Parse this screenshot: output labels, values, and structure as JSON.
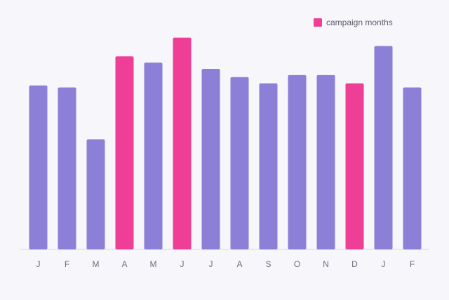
{
  "chart_data": {
    "type": "bar",
    "categories": [
      "J",
      "F",
      "M",
      "A",
      "M",
      "J",
      "J",
      "A",
      "S",
      "O",
      "N",
      "D",
      "J",
      "F"
    ],
    "values": [
      79,
      78,
      53,
      93,
      90,
      102,
      87,
      83,
      80,
      84,
      84,
      80,
      98,
      78
    ],
    "highlighted": [
      false,
      false,
      false,
      true,
      false,
      true,
      false,
      false,
      false,
      false,
      false,
      true,
      false,
      false
    ],
    "ylim": [
      0,
      110
    ],
    "grid": false,
    "legend": {
      "label": "campaign months",
      "position": "top-right"
    },
    "colors": {
      "base": "#8b7fd8",
      "highlight": "#ee3e95",
      "baseline": "#d8d6e4"
    }
  }
}
